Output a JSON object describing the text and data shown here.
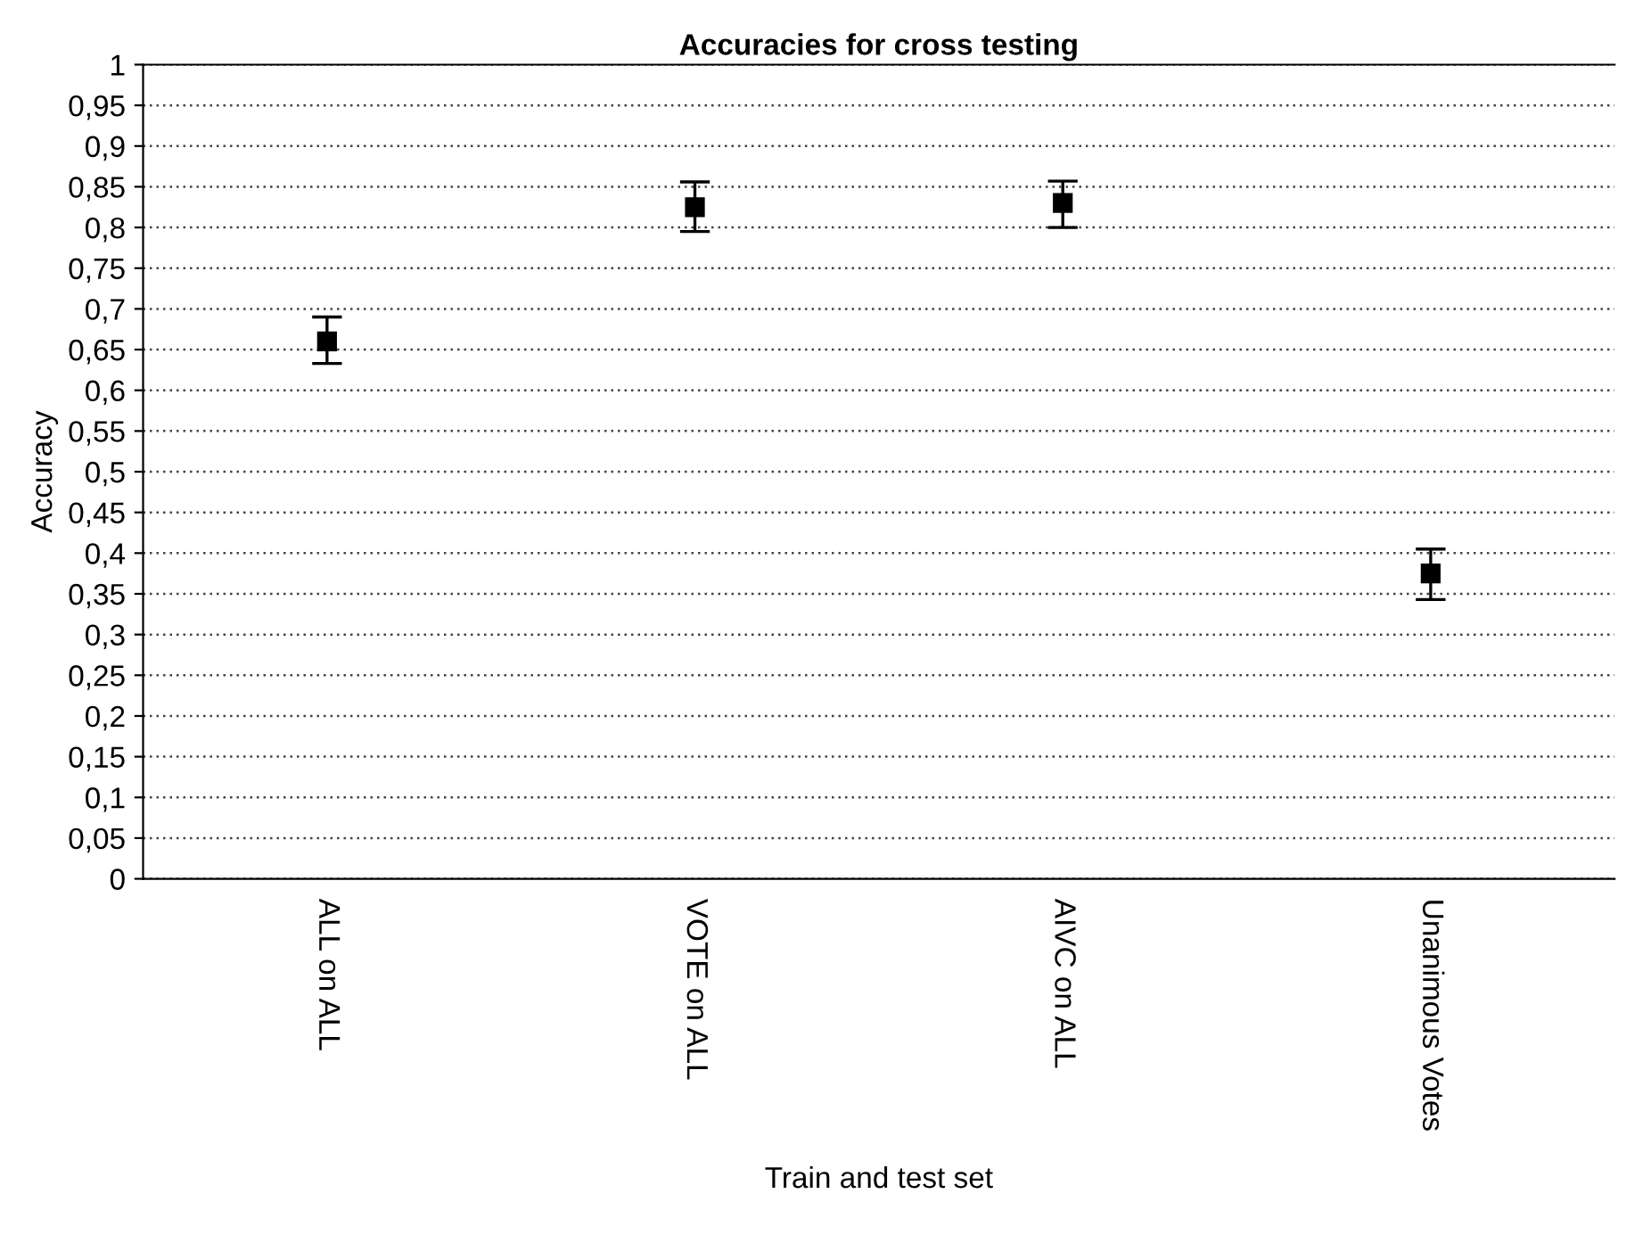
{
  "chart_data": {
    "type": "scatter",
    "title": "Accuracies for cross testing",
    "xlabel": "Train and test set",
    "ylabel": "Accuracy",
    "categories": [
      "ALL on ALL",
      "VOTE on ALL",
      "AIVC on ALL",
      "Unanimous Votes"
    ],
    "values": [
      0.66,
      0.825,
      0.83,
      0.375
    ],
    "errors": [
      [
        0.633,
        0.69
      ],
      [
        0.795,
        0.856
      ],
      [
        0.8,
        0.857
      ],
      [
        0.343,
        0.405
      ]
    ],
    "color": "#000000",
    "marker": "square",
    "ylim": [
      0,
      1
    ],
    "yticks": [
      0,
      {
        "value": 0.05,
        "label": "0,05"
      },
      {
        "value": 0.1,
        "label": "0,1"
      },
      {
        "value": 0.15,
        "label": "0,15"
      },
      {
        "value": 0.2,
        "label": "0,2"
      },
      {
        "value": 0.25,
        "label": "0,25"
      },
      {
        "value": 0.3,
        "label": "0,3"
      },
      {
        "value": 0.35,
        "label": "0,35"
      },
      {
        "value": 0.4,
        "label": "0,4"
      },
      {
        "value": 0.45,
        "label": "0,45"
      },
      {
        "value": 0.5,
        "label": "0,5"
      },
      {
        "value": 0.55,
        "label": "0,55"
      },
      {
        "value": 0.6,
        "label": "0,6"
      },
      {
        "value": 0.65,
        "label": "0,65"
      },
      {
        "value": 0.7,
        "label": "0,7"
      },
      {
        "value": 0.75,
        "label": "0,75"
      },
      {
        "value": 0.8,
        "label": "0,8"
      },
      {
        "value": 0.85,
        "label": "0,85"
      },
      {
        "value": 0.9,
        "label": "0,9"
      },
      {
        "value": 0.95,
        "label": "0,95"
      },
      1
    ],
    "grid": "y",
    "legend": false
  }
}
